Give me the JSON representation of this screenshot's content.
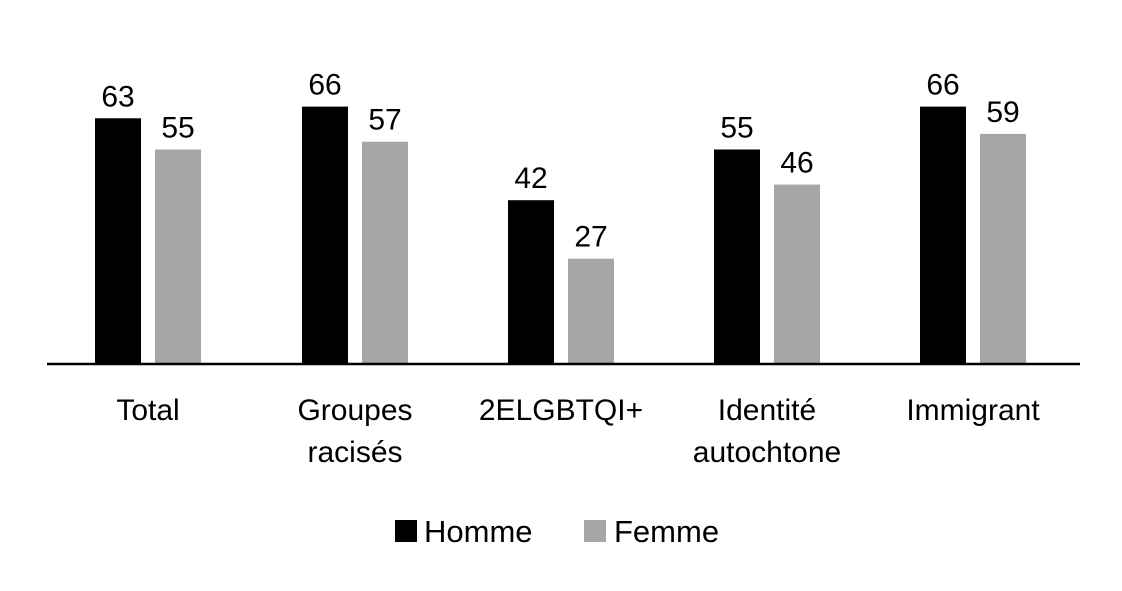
{
  "chart_data": {
    "type": "bar",
    "categories": [
      [
        "Total"
      ],
      [
        "Groupes",
        "racisés"
      ],
      [
        "2ELGBTQI+"
      ],
      [
        "Identité",
        "autochtone"
      ],
      [
        "Immigrant"
      ]
    ],
    "series": [
      {
        "name": "Homme",
        "color": "#000000",
        "values": [
          63,
          66,
          42,
          55,
          66
        ]
      },
      {
        "name": "Femme",
        "color": "#a6a6a6",
        "values": [
          55,
          57,
          27,
          46,
          59
        ]
      }
    ],
    "ylim": [
      0,
      70
    ],
    "grid": false,
    "legend_position": "bottom",
    "data_labels": true
  }
}
